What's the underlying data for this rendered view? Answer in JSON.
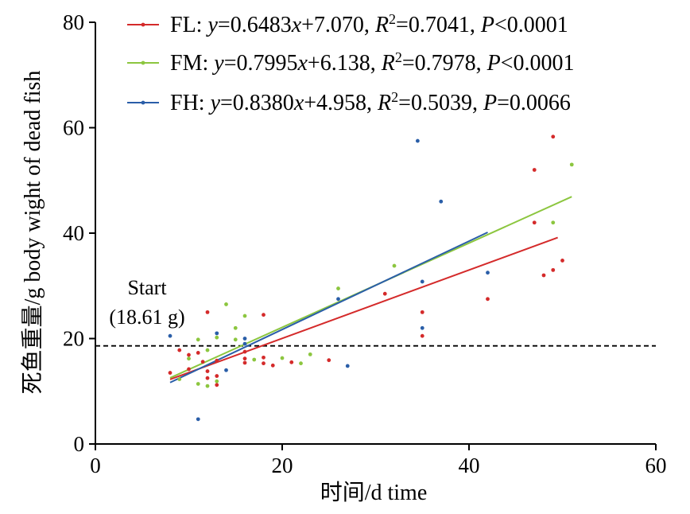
{
  "chart_data": {
    "type": "scatter",
    "xlabel": "时间/d time",
    "ylabel": "死鱼重量/g body wight of dead fish",
    "xlim": [
      0,
      60
    ],
    "ylim": [
      0,
      80
    ],
    "xticks": [
      "0",
      "20",
      "40",
      "60"
    ],
    "yticks": [
      "0",
      "20",
      "40",
      "60",
      "80"
    ],
    "grid": false,
    "legend_position": "top-right",
    "reference_line": {
      "y": 18.61,
      "style": "dashed"
    },
    "annotation": {
      "line1": "Start",
      "line2": "(18.61 g)"
    },
    "series": [
      {
        "name": "FL",
        "color": "#d42a2a",
        "legend": {
          "name": "FL",
          "slope": "0.6483",
          "intercept": "7.070",
          "r2": "0.7041",
          "p_op": "<",
          "p": "0.0001"
        },
        "fit": {
          "slope": 0.6483,
          "intercept": 7.07,
          "x_range": [
            8,
            49.5
          ]
        },
        "points": [
          [
            8,
            13.5
          ],
          [
            9,
            17.8
          ],
          [
            10,
            16.9
          ],
          [
            10,
            14.2
          ],
          [
            11,
            17.3
          ],
          [
            11.5,
            15.6
          ],
          [
            12,
            25
          ],
          [
            12,
            13.8
          ],
          [
            12,
            12.5
          ],
          [
            13,
            15.8
          ],
          [
            13,
            12.9
          ],
          [
            13,
            11.2
          ],
          [
            16,
            17.5
          ],
          [
            16,
            16.2
          ],
          [
            16,
            15.4
          ],
          [
            18,
            24.5
          ],
          [
            18,
            16.4
          ],
          [
            18,
            15.3
          ],
          [
            19,
            14.9
          ],
          [
            21,
            15.5
          ],
          [
            25,
            15.9
          ],
          [
            31,
            28.5
          ],
          [
            35,
            25
          ],
          [
            35,
            20.5
          ],
          [
            42,
            27.5
          ],
          [
            47,
            52
          ],
          [
            47,
            42
          ],
          [
            48,
            32
          ],
          [
            49,
            58.3
          ],
          [
            49,
            33
          ],
          [
            50,
            34.8
          ]
        ]
      },
      {
        "name": "FM",
        "color": "#8cc63f",
        "legend": {
          "name": "FM",
          "slope": "0.7995",
          "intercept": "6.138",
          "r2": "0.7978",
          "p_op": "<",
          "p": "0.0001"
        },
        "fit": {
          "slope": 0.7995,
          "intercept": 6.138,
          "x_range": [
            8,
            51
          ]
        },
        "points": [
          [
            9,
            12.3
          ],
          [
            10,
            16.2
          ],
          [
            11,
            19.8
          ],
          [
            11,
            11.4
          ],
          [
            12,
            17.8
          ],
          [
            12,
            11
          ],
          [
            13,
            20.2
          ],
          [
            13,
            11.9
          ],
          [
            14,
            26.5
          ],
          [
            15,
            22
          ],
          [
            15,
            19.8
          ],
          [
            16,
            24.3
          ],
          [
            17,
            16
          ],
          [
            20,
            16.3
          ],
          [
            22,
            15.3
          ],
          [
            23,
            17
          ],
          [
            26,
            29.5
          ],
          [
            32,
            33.8
          ],
          [
            49,
            42
          ],
          [
            51,
            53
          ]
        ]
      },
      {
        "name": "FH",
        "color": "#2a5ea8",
        "legend": {
          "name": "FH",
          "slope": "0.8380",
          "intercept": "4.958",
          "r2": "0.5039",
          "p_op": "=",
          "p": "0.0066"
        },
        "fit": {
          "slope": 0.838,
          "intercept": 4.958,
          "x_range": [
            8,
            42
          ]
        },
        "points": [
          [
            8,
            20.5
          ],
          [
            11,
            4.7
          ],
          [
            13,
            21
          ],
          [
            14,
            14
          ],
          [
            16,
            20
          ],
          [
            16,
            19
          ],
          [
            26,
            27.5
          ],
          [
            27,
            14.8
          ],
          [
            34.5,
            57.5
          ],
          [
            35,
            30.8
          ],
          [
            35,
            22
          ],
          [
            37,
            46
          ],
          [
            42,
            32.5
          ]
        ]
      }
    ]
  }
}
